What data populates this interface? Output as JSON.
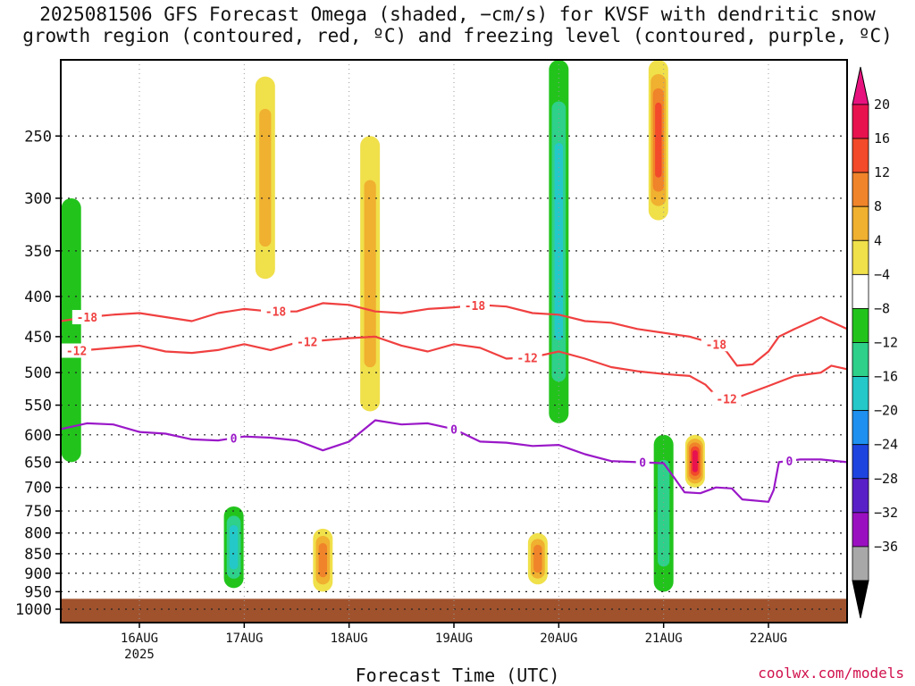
{
  "title_line1": "2025081506 GFS Forecast Omega (shaded, −cm/s) for KVSF with dendritic snow",
  "title_line2": "growth region (contoured, red, ºC) and freezing level (contoured, purple, ºC)",
  "credit": "coolwx.com/models",
  "chart_data": {
    "type": "heatmap",
    "title": "2025081506 GFS Forecast Omega (shaded, −cm/s) for KVSF with dendritic snow growth region (contoured, red, ºC) and freezing level (contoured, purple, ºC)",
    "xlabel": "Forecast Time (UTC)",
    "ylabel": "",
    "x_range_days": [
      15.25,
      22.75
    ],
    "y_scale": "log pressure (hPa), inverted",
    "y_range": [
      1040,
      200
    ],
    "grid": true,
    "y_ticks": [
      250,
      300,
      350,
      400,
      450,
      500,
      550,
      600,
      650,
      700,
      750,
      800,
      850,
      900,
      950,
      1000
    ],
    "x_ticks": [
      {
        "day": 16,
        "label": "16AUG",
        "sublabel": "2025"
      },
      {
        "day": 17,
        "label": "17AUG",
        "sublabel": ""
      },
      {
        "day": 18,
        "label": "18AUG",
        "sublabel": ""
      },
      {
        "day": 19,
        "label": "19AUG",
        "sublabel": ""
      },
      {
        "day": 20,
        "label": "20AUG",
        "sublabel": ""
      },
      {
        "day": 21,
        "label": "21AUG",
        "sublabel": ""
      },
      {
        "day": 22,
        "label": "22AUG",
        "sublabel": ""
      }
    ],
    "colorbar": {
      "labels": [
        "20",
        "16",
        "12",
        "8",
        "4",
        "−4",
        "−8",
        "−12",
        "−16",
        "−20",
        "−24",
        "−28",
        "−32",
        "−36"
      ],
      "colors": [
        "#e8124f",
        "#f24a2a",
        "#f0842a",
        "#f0b030",
        "#f0e04a",
        "#ffffff",
        "#22c41c",
        "#2ed08a",
        "#24c8c8",
        "#1e90f0",
        "#1e44e0",
        "#5a20c8",
        "#9a10c0",
        "#a8a8a8"
      ],
      "top_arrow_color": "#e8127f",
      "bottom_arrow_color": "#000000"
    },
    "ground_pressure": 970,
    "ground_color": "#a0522d",
    "contours": [
      {
        "name": "-18",
        "color": "#f04040",
        "label_days": [
          15.5,
          17.3,
          19.2,
          21.5
        ],
        "points": [
          [
            15.25,
            430
          ],
          [
            15.5,
            425
          ],
          [
            15.75,
            422
          ],
          [
            16.0,
            420
          ],
          [
            16.25,
            425
          ],
          [
            16.5,
            430
          ],
          [
            16.75,
            420
          ],
          [
            17.0,
            415
          ],
          [
            17.25,
            418
          ],
          [
            17.5,
            418
          ],
          [
            17.75,
            408
          ],
          [
            18.0,
            410
          ],
          [
            18.25,
            418
          ],
          [
            18.5,
            420
          ],
          [
            18.75,
            415
          ],
          [
            19.0,
            413
          ],
          [
            19.25,
            410
          ],
          [
            19.5,
            412
          ],
          [
            19.75,
            420
          ],
          [
            20.0,
            422
          ],
          [
            20.25,
            430
          ],
          [
            20.5,
            432
          ],
          [
            20.75,
            440
          ],
          [
            21.0,
            445
          ],
          [
            21.25,
            450
          ],
          [
            21.5,
            460
          ],
          [
            21.6,
            470
          ],
          [
            21.7,
            490
          ],
          [
            21.85,
            488
          ],
          [
            22.0,
            470
          ],
          [
            22.1,
            450
          ],
          [
            22.25,
            440
          ],
          [
            22.5,
            425
          ],
          [
            22.75,
            440
          ]
        ]
      },
      {
        "name": "-12",
        "color": "#f04040",
        "label_days": [
          15.4,
          17.6,
          19.7,
          21.6
        ],
        "points": [
          [
            15.25,
            470
          ],
          [
            15.5,
            468
          ],
          [
            15.75,
            465
          ],
          [
            16.0,
            462
          ],
          [
            16.25,
            470
          ],
          [
            16.5,
            472
          ],
          [
            16.75,
            468
          ],
          [
            17.0,
            460
          ],
          [
            17.25,
            468
          ],
          [
            17.5,
            458
          ],
          [
            17.75,
            455
          ],
          [
            18.0,
            452
          ],
          [
            18.25,
            450
          ],
          [
            18.5,
            462
          ],
          [
            18.75,
            470
          ],
          [
            19.0,
            460
          ],
          [
            19.25,
            465
          ],
          [
            19.5,
            480
          ],
          [
            19.75,
            478
          ],
          [
            20.0,
            470
          ],
          [
            20.25,
            480
          ],
          [
            20.5,
            492
          ],
          [
            20.75,
            498
          ],
          [
            21.0,
            502
          ],
          [
            21.25,
            505
          ],
          [
            21.4,
            518
          ],
          [
            21.5,
            535
          ],
          [
            21.6,
            540
          ],
          [
            21.75,
            535
          ],
          [
            22.0,
            520
          ],
          [
            22.25,
            505
          ],
          [
            22.5,
            500
          ],
          [
            22.6,
            490
          ],
          [
            22.75,
            495
          ]
        ]
      },
      {
        "name": "0",
        "color": "#9a18c8",
        "label_days": [
          16.9,
          19.0,
          20.8,
          22.2
        ],
        "points": [
          [
            15.25,
            590
          ],
          [
            15.5,
            580
          ],
          [
            15.75,
            582
          ],
          [
            16.0,
            595
          ],
          [
            16.25,
            598
          ],
          [
            16.5,
            608
          ],
          [
            16.75,
            610
          ],
          [
            17.0,
            603
          ],
          [
            17.25,
            605
          ],
          [
            17.5,
            610
          ],
          [
            17.75,
            628
          ],
          [
            18.0,
            612
          ],
          [
            18.25,
            575
          ],
          [
            18.5,
            582
          ],
          [
            18.75,
            580
          ],
          [
            19.0,
            590
          ],
          [
            19.25,
            612
          ],
          [
            19.5,
            614
          ],
          [
            19.75,
            620
          ],
          [
            20.0,
            618
          ],
          [
            20.25,
            635
          ],
          [
            20.5,
            648
          ],
          [
            20.75,
            650
          ],
          [
            21.0,
            652
          ],
          [
            21.1,
            680
          ],
          [
            21.2,
            710
          ],
          [
            21.35,
            712
          ],
          [
            21.5,
            700
          ],
          [
            21.65,
            702
          ],
          [
            21.75,
            725
          ],
          [
            22.0,
            730
          ],
          [
            22.05,
            705
          ],
          [
            22.1,
            650
          ],
          [
            22.3,
            645
          ],
          [
            22.5,
            645
          ],
          [
            22.75,
            650
          ]
        ]
      }
    ],
    "omega_features": [
      {
        "day": 15.35,
        "p_top": 300,
        "p_bot": 650,
        "value": -6
      },
      {
        "day": 16.9,
        "p_top": 740,
        "p_bot": 940,
        "value": -12
      },
      {
        "day": 17.2,
        "p_top": 210,
        "p_bot": 380,
        "value": 10
      },
      {
        "day": 17.75,
        "p_top": 790,
        "p_bot": 950,
        "value": 14
      },
      {
        "day": 18.2,
        "p_top": 250,
        "p_bot": 560,
        "value": 10
      },
      {
        "day": 20.0,
        "p_top": 200,
        "p_bot": 580,
        "value": -14
      },
      {
        "day": 19.8,
        "p_top": 800,
        "p_bot": 930,
        "value": 12
      },
      {
        "day": 20.95,
        "p_top": 200,
        "p_bot": 320,
        "value": 18
      },
      {
        "day": 21.3,
        "p_top": 600,
        "p_bot": 700,
        "value": 20
      },
      {
        "day": 21.0,
        "p_top": 600,
        "p_bot": 950,
        "value": -10
      }
    ]
  }
}
